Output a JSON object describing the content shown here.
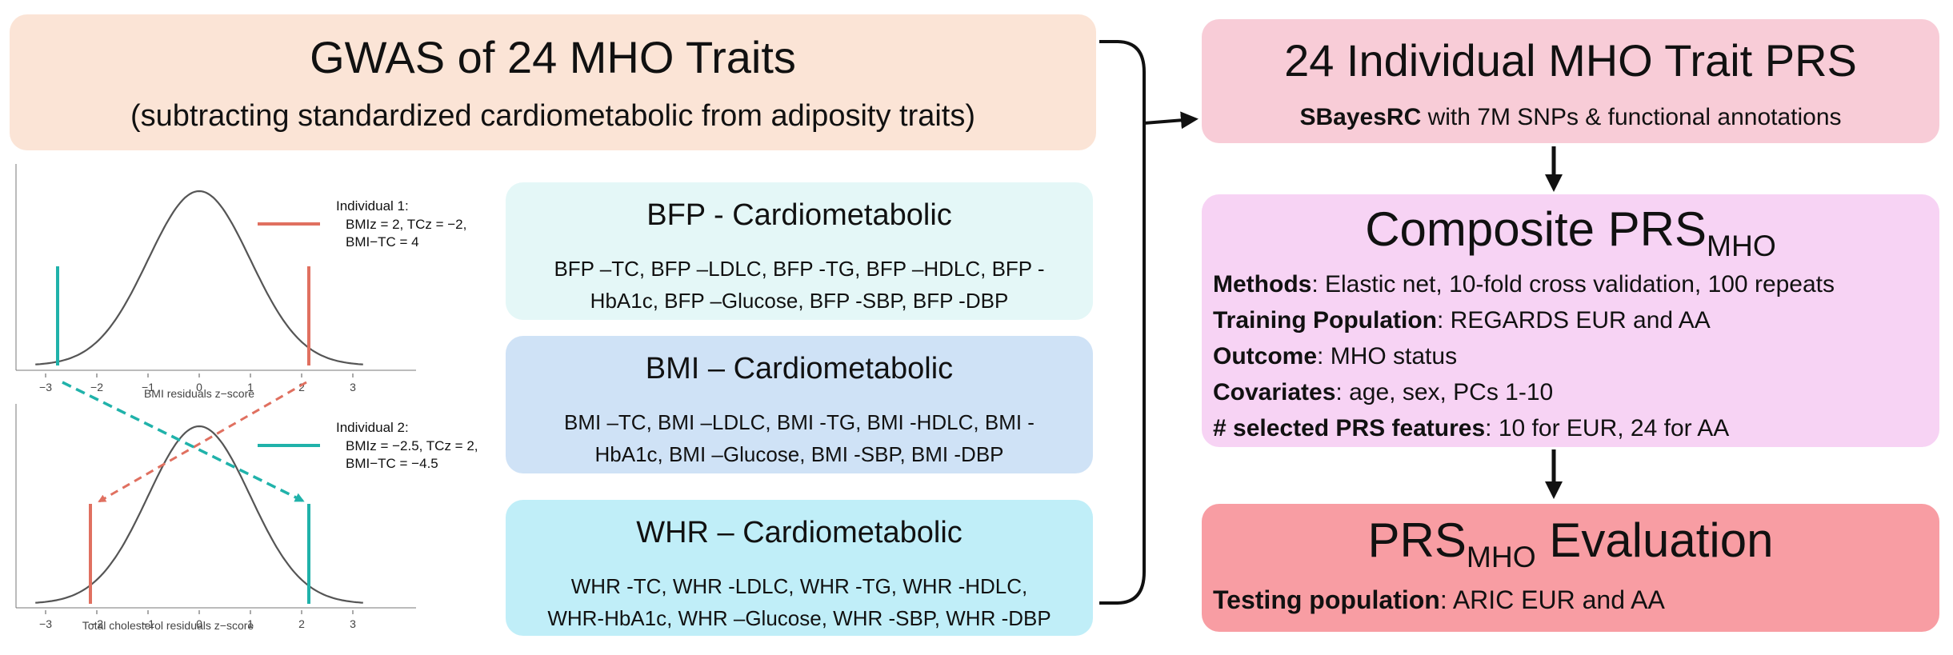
{
  "gwas": {
    "title": "GWAS of 24 MHO Traits",
    "subtitle": "(subtracting standardized cardiometabolic from adiposity traits)"
  },
  "traits": [
    {
      "title": "BFP  - Cardiometabolic",
      "line1": "BFP –TC, BFP –LDLC, BFP -TG, BFP –HDLC, BFP -",
      "line2": "HbA1c, BFP –Glucose, BFP -SBP, BFP -DBP"
    },
    {
      "title": "BMI – Cardiometabolic",
      "line1": "BMI –TC, BMI –LDLC, BMI -TG, BMI -HDLC, BMI -",
      "line2": "HbA1c, BMI –Glucose, BMI -SBP, BMI -DBP"
    },
    {
      "title": "WHR – Cardiometabolic",
      "line1": "WHR -TC, WHR -LDLC, WHR -TG, WHR -HDLC,",
      "line2": "WHR-HbA1c, WHR –Glucose, WHR -SBP, WHR -DBP"
    }
  ],
  "prs24": {
    "title": "24 Individual MHO Trait PRS",
    "method_bold": "SBayesRC",
    "method_rest": " with 7M SNPs & functional annotations"
  },
  "composite": {
    "title_main": "Composite PRS",
    "title_sub": "MHO",
    "rows": [
      {
        "label": "Methods",
        "value": ": Elastic net, 10-fold cross validation, 100 repeats"
      },
      {
        "label": "Training Population",
        "value": ": REGARDS EUR and AA"
      },
      {
        "label": "Outcome",
        "value": ": MHO status"
      },
      {
        "label": "Covariates",
        "value": ": age, sex, PCs 1-10"
      },
      {
        "label": "# selected PRS features",
        "value": ": 10 for EUR, 24 for AA"
      }
    ]
  },
  "evaluation": {
    "title_main": "PRS",
    "title_sub": "MHO",
    "title_rest": " Evaluation",
    "label": "Testing population",
    "value": ": ARIC EUR and AA"
  },
  "plots": {
    "top_xlabel": "BMI residuals z−score",
    "bottom_xlabel": "Total cholesterol residuals z−score",
    "ticks": [
      "−3",
      "−2",
      "−1",
      "0",
      "1",
      "2",
      "3"
    ],
    "individual1": {
      "name": "Individual 1:",
      "line1": "BMIz = 2, TCz = −2,",
      "line2": "BMI−TC = 4",
      "color": "#e07060"
    },
    "individual2": {
      "name": "Individual 2:",
      "line1": "BMIz = −2.5, TCz = 2,",
      "line2": "BMI−TC = −4.5",
      "color": "#20b2aa"
    }
  }
}
